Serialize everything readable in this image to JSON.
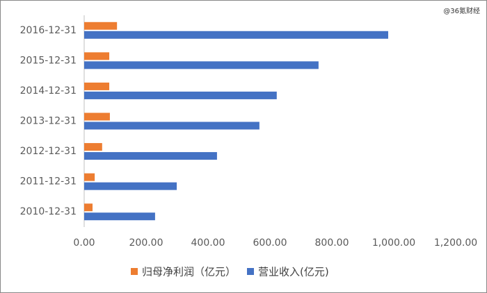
{
  "chart_data": {
    "type": "bar",
    "orientation": "horizontal",
    "watermark": "@36氪财经",
    "categories": [
      "2016-12-31",
      "2015-12-31",
      "2014-12-31",
      "2013-12-31",
      "2012-12-31",
      "2011-12-31",
      "2010-12-31"
    ],
    "series": [
      {
        "name": "归母净利润（亿元）",
        "color": "#ed7d31",
        "values": [
          106,
          81,
          81,
          83,
          58,
          34,
          27
        ]
      },
      {
        "name": "营业收入(亿元)",
        "color": "#4472c4",
        "values": [
          982,
          757,
          622,
          566,
          429,
          299,
          229
        ]
      }
    ],
    "xlim": [
      0,
      1200
    ],
    "xticks": [
      {
        "value": 0,
        "label": "0.00"
      },
      {
        "value": 200,
        "label": "200.00"
      },
      {
        "value": 400,
        "label": "400.00"
      },
      {
        "value": 600,
        "label": "600.00"
      },
      {
        "value": 800,
        "label": "800.00"
      },
      {
        "value": 1000,
        "label": "1,000.00"
      },
      {
        "value": 1200,
        "label": "1,200.00"
      }
    ],
    "legend": "bottom",
    "grid": false
  }
}
